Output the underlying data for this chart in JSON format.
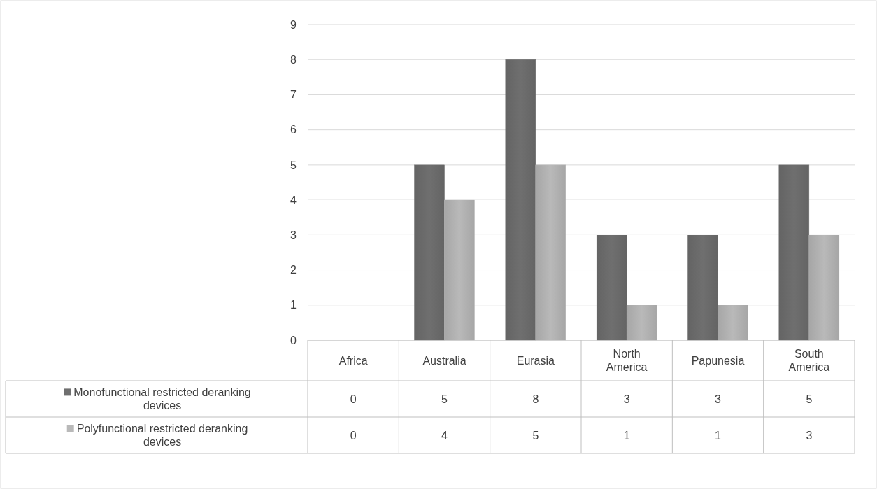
{
  "chart_data": {
    "type": "bar",
    "categories": [
      "Africa",
      "Australia",
      "Eurasia",
      "North America",
      "Papunesia",
      "South America"
    ],
    "series": [
      {
        "name": "Monofunctional restricted deranking devices",
        "color": "#6f6f6f",
        "values": [
          0,
          5,
          8,
          3,
          3,
          5
        ]
      },
      {
        "name": "Polyfunctional restricted deranking devices",
        "color": "#b9b9b9",
        "values": [
          0,
          4,
          5,
          1,
          1,
          3
        ]
      }
    ],
    "ylim": [
      0,
      9
    ],
    "yticks": [
      0,
      1,
      2,
      3,
      4,
      5,
      6,
      7,
      8,
      9
    ],
    "grid": "y",
    "legend": "bottom",
    "data_labels": true
  }
}
